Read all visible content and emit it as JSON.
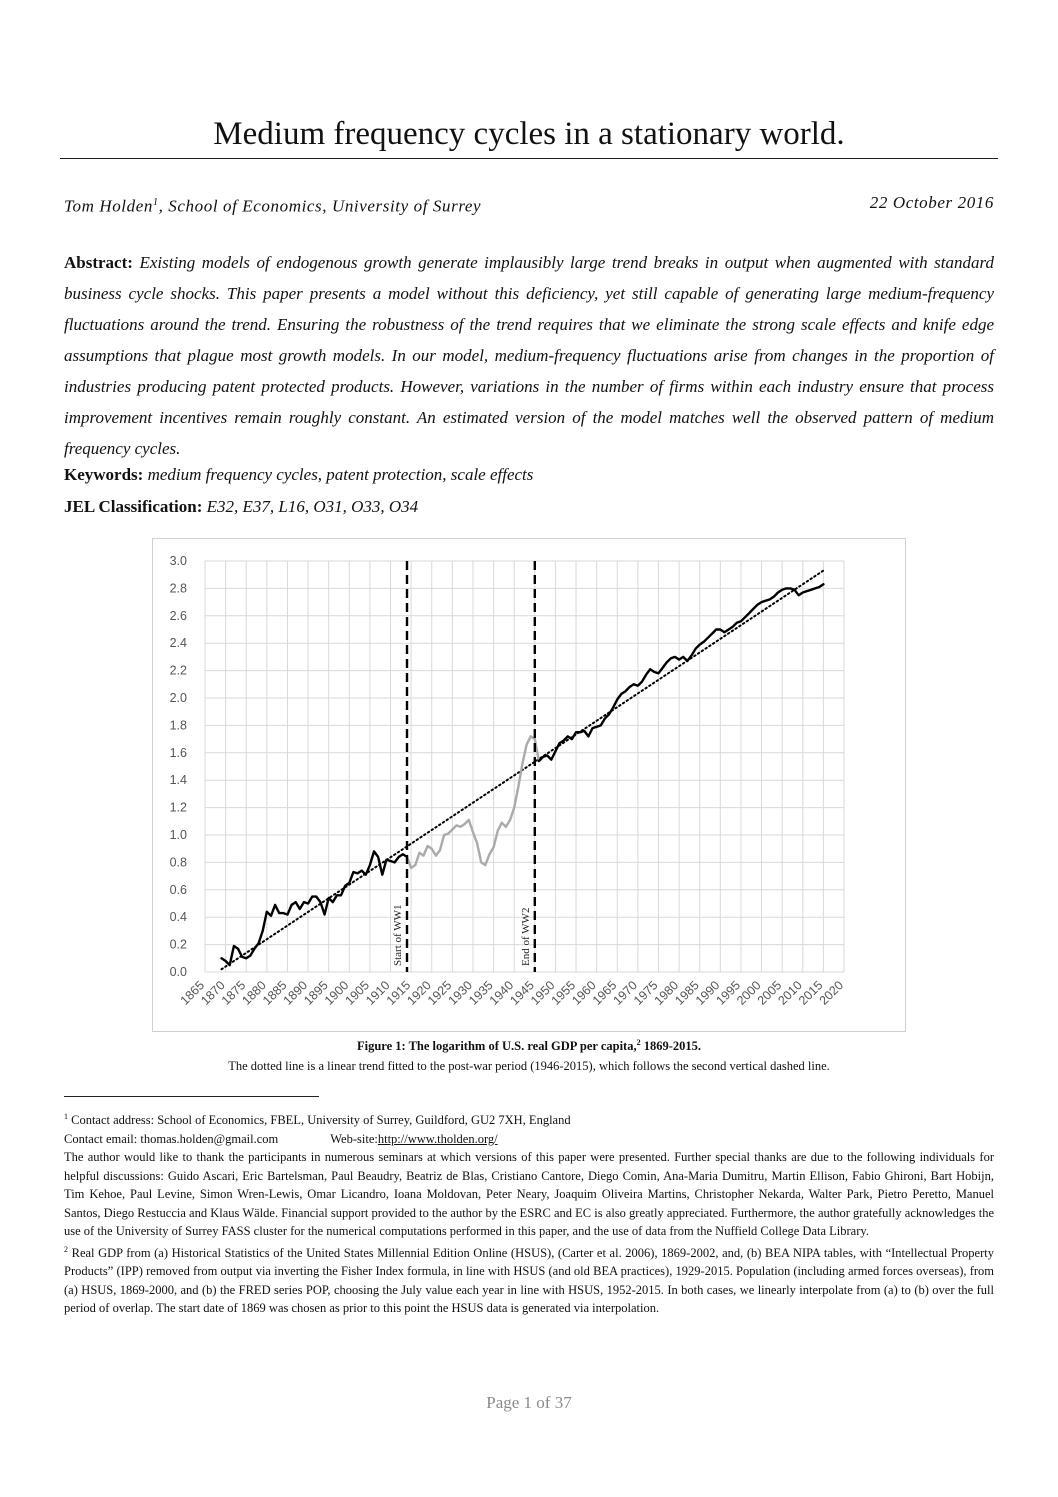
{
  "paper": {
    "title": "Medium frequency cycles in a stationary world.",
    "author_affiliation": "Tom Holden",
    "footnote_mark": "1",
    "affiliation_rest": ", School of Economics, University of Surrey",
    "date": "22 October 2016",
    "abstract_label": "Abstract:",
    "abstract_text": "Existing models of endogenous growth generate implausibly large trend breaks in output when augmented with standard business cycle shocks. This paper presents a model without this deficiency, yet still capable of generating large medium-frequency fluctuations around the trend. Ensuring the robustness of the trend requires that we eliminate the strong scale effects and knife edge assumptions that plague most growth models. In our model, medium-frequency fluctuations arise from changes in the proportion of industries producing patent protected products. However, variations in the number of firms within each industry ensure that process improvement incentives remain roughly constant. An estimated version of the model matches well the observed pattern of medium frequency cycles.",
    "keywords_label": "Keywords:",
    "keywords_text": "medium frequency cycles, patent protection, scale effects",
    "jel_label": "JEL Classification:",
    "jel_text": "E32, E37, L16, O31, O33, O34"
  },
  "figure": {
    "caption_title_pre": "Figure 1: The logarithm of U.S. real GDP per capita,",
    "caption_mark": "2",
    "caption_title_post": " 1869-2015.",
    "caption_note": "The dotted line is a linear trend fitted to the post-war period (1946-2015), which follows the second vertical dashed line."
  },
  "chart_data": {
    "type": "line",
    "title": "",
    "xlabel": "",
    "ylabel": "",
    "xlim": [
      1865,
      2020
    ],
    "ylim": [
      0,
      3
    ],
    "x_ticks": [
      1865,
      1870,
      1875,
      1880,
      1885,
      1890,
      1895,
      1900,
      1905,
      1910,
      1915,
      1920,
      1925,
      1930,
      1935,
      1940,
      1945,
      1950,
      1955,
      1960,
      1965,
      1970,
      1975,
      1980,
      1985,
      1990,
      1995,
      2000,
      2005,
      2010,
      2015,
      2020
    ],
    "y_ticks": [
      0.0,
      0.2,
      0.4,
      0.6,
      0.8,
      1.0,
      1.2,
      1.4,
      1.6,
      1.8,
      2.0,
      2.2,
      2.4,
      2.6,
      2.8,
      3.0
    ],
    "y_tick_labels": [
      "0.0",
      "0.2",
      "0.4",
      "0.6",
      "0.8",
      "1.0",
      "1.2",
      "1.4",
      "1.6",
      "1.8",
      "2.0",
      "2.2",
      "2.4",
      "2.6",
      "2.8",
      "3.0"
    ],
    "grid": true,
    "legend": "none",
    "colors": {
      "peace": "#000000",
      "war": "#aaaaaa",
      "trend": "#000000",
      "grid": "#d9d9d9"
    },
    "series": [
      {
        "style": "solid-black",
        "x": [
          1869,
          1870,
          1871,
          1872,
          1873,
          1874,
          1875,
          1876,
          1877,
          1878,
          1879,
          1880,
          1881,
          1882,
          1883,
          1884,
          1885,
          1886,
          1887,
          1888,
          1889,
          1890,
          1891,
          1892,
          1893,
          1894,
          1895,
          1896,
          1897,
          1898,
          1899,
          1900,
          1901,
          1902,
          1903,
          1904,
          1905,
          1906,
          1907,
          1908,
          1909,
          1910,
          1911,
          1912,
          1913,
          1914
        ],
        "y": [
          0.1,
          0.08,
          0.05,
          0.19,
          0.17,
          0.11,
          0.1,
          0.12,
          0.17,
          0.21,
          0.3,
          0.44,
          0.41,
          0.49,
          0.43,
          0.43,
          0.42,
          0.49,
          0.51,
          0.46,
          0.51,
          0.5,
          0.55,
          0.55,
          0.51,
          0.42,
          0.54,
          0.51,
          0.56,
          0.56,
          0.63,
          0.65,
          0.73,
          0.72,
          0.74,
          0.71,
          0.78,
          0.88,
          0.84,
          0.71,
          0.82,
          0.81,
          0.8,
          0.84,
          0.86,
          0.84
        ]
      },
      {
        "style": "solid-grey",
        "x": [
          1914,
          1915,
          1916,
          1917,
          1918,
          1919,
          1920,
          1921,
          1922,
          1923,
          1924,
          1925,
          1926,
          1927,
          1928,
          1929,
          1930,
          1931,
          1932,
          1933,
          1934,
          1935,
          1936,
          1937,
          1938,
          1939,
          1940,
          1941,
          1942,
          1943,
          1944,
          1945,
          1946
        ],
        "y": [
          0.84,
          0.76,
          0.78,
          0.87,
          0.85,
          0.92,
          0.9,
          0.85,
          0.89,
          1.0,
          1.01,
          1.04,
          1.07,
          1.06,
          1.08,
          1.11,
          1.02,
          0.94,
          0.8,
          0.78,
          0.86,
          0.91,
          1.03,
          1.09,
          1.06,
          1.11,
          1.2,
          1.35,
          1.52,
          1.66,
          1.72,
          1.7,
          1.54
        ]
      },
      {
        "style": "solid-black",
        "x": [
          1946,
          1947,
          1948,
          1949,
          1950,
          1951,
          1952,
          1953,
          1954,
          1955,
          1956,
          1957,
          1958,
          1959,
          1960,
          1961,
          1962,
          1963,
          1964,
          1965,
          1966,
          1967,
          1968,
          1969,
          1970,
          1971,
          1972,
          1973,
          1974,
          1975,
          1976,
          1977,
          1978,
          1979,
          1980,
          1981,
          1982,
          1983,
          1984,
          1985,
          1986,
          1987,
          1988,
          1989,
          1990,
          1991,
          1992,
          1993,
          1994,
          1995,
          1996,
          1997,
          1998,
          1999,
          2000,
          2001,
          2002,
          2003,
          2004,
          2005,
          2006,
          2007,
          2008,
          2009,
          2010,
          2011,
          2012,
          2013,
          2014,
          2015
        ],
        "y": [
          1.54,
          1.57,
          1.58,
          1.55,
          1.61,
          1.67,
          1.69,
          1.72,
          1.7,
          1.75,
          1.75,
          1.76,
          1.72,
          1.78,
          1.79,
          1.8,
          1.85,
          1.88,
          1.93,
          1.99,
          2.03,
          2.05,
          2.08,
          2.1,
          2.09,
          2.12,
          2.17,
          2.21,
          2.19,
          2.18,
          2.22,
          2.26,
          2.29,
          2.3,
          2.28,
          2.3,
          2.27,
          2.31,
          2.36,
          2.39,
          2.41,
          2.44,
          2.47,
          2.5,
          2.5,
          2.48,
          2.5,
          2.52,
          2.55,
          2.56,
          2.59,
          2.62,
          2.65,
          2.68,
          2.7,
          2.71,
          2.72,
          2.74,
          2.77,
          2.79,
          2.8,
          2.8,
          2.79,
          2.75,
          2.77,
          2.78,
          2.79,
          2.8,
          2.81,
          2.83
        ]
      }
    ],
    "trend": {
      "x": [
        1869,
        2015
      ],
      "y": [
        0.02,
        2.93
      ],
      "style": "dotted"
    },
    "vlines": [
      {
        "x": 1914,
        "label": "Start of WW1"
      },
      {
        "x": 1945,
        "label": "End of WW2"
      }
    ]
  },
  "footnotes": {
    "fn1_mark": "1",
    "fn1_address": " Contact address: School of Economics, FBEL, University of Surrey, Guildford, GU2 7XH, England",
    "email_label": "Contact email: thomas.holden@gmail.com",
    "web_label": "Web-site: ",
    "web_url": "http://www.tholden.org/",
    "thanks": "The author would like to thank the participants in numerous seminars at which versions of this paper were presented. Further special thanks are due to the following individuals for helpful discussions: Guido Ascari, Eric Bartelsman, Paul Beaudry, Beatriz de Blas, Cristiano Cantore, Diego Comin, Ana-Maria Dumitru, Martin Ellison, Fabio Ghironi, Bart Hobijn, Tim Kehoe, Paul Levine, Simon Wren-Lewis, Omar Licandro, Ioana Moldovan, Peter Neary, Joaquim Oliveira Martins, Christopher Nekarda, Walter Park, Pietro Peretto, Manuel Santos, Diego Restuccia and Klaus Wälde. Financial support provided to the author by the ESRC and EC is also greatly appreciated. Furthermore, the author gratefully acknowledges the use of the University of Surrey FASS cluster for the numerical computations performed in this paper, and the use of data from the Nuffield College Data Library.",
    "fn2_mark": "2",
    "fn2_text": " Real GDP from (a) Historical Statistics of the United States Millennial Edition Online (HSUS), (Carter et al. 2006), 1869-2002, and, (b) BEA NIPA tables, with “Intellectual Property Products” (IPP) removed from output via inverting the Fisher Index formula, in line with HSUS (and old BEA practices), 1929-2015. Population (including armed forces overseas), from (a) HSUS, 1869-2000, and (b) the FRED series POP, choosing the July value each year in line with HSUS, 1952-2015. In both cases, we linearly interpolate from (a) to (b) over the full period of overlap. The start date of 1869 was chosen as prior to this point the HSUS data is generated via interpolation."
  },
  "page_number": "Page 1 of 37"
}
